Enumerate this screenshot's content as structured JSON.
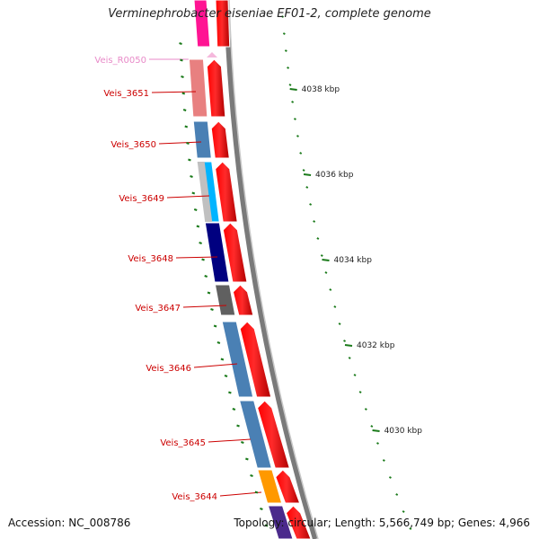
{
  "title": "Verminephrobacter eiseniae EF01-2, complete genome",
  "accession": "Accession: NC_008786",
  "summary": "Topology: circular; Length: 5,566,749 bp; Genes: 4,966",
  "colors": {
    "gene_label": "#cc0000",
    "rna_label": "#e88ac8",
    "tick": "#1a7a1a",
    "strand_arrow": "#ff0000",
    "backbone": "#808080"
  },
  "genes": [
    {
      "id": "Veis_R0050",
      "color": "#e88ac8",
      "feature_color": "#f5b8dc"
    },
    {
      "id": "Veis_3651",
      "color": "#cc0000",
      "feature_color": "#e88080"
    },
    {
      "id": "Veis_3650",
      "color": "#cc0000",
      "feature_color": "#4a80b4"
    },
    {
      "id": "Veis_3649",
      "color": "#cc0000",
      "feature_color": "#00b4ff"
    },
    {
      "id": "Veis_3648",
      "color": "#cc0000",
      "feature_color": "#000080"
    },
    {
      "id": "Veis_3647",
      "color": "#cc0000",
      "feature_color": "#606060"
    },
    {
      "id": "Veis_3646",
      "color": "#cc0000",
      "feature_color": "#4a80b4"
    },
    {
      "id": "Veis_3645",
      "color": "#cc0000",
      "feature_color": "#4a80b4"
    },
    {
      "id": "Veis_3644",
      "color": "#cc0000",
      "feature_color": "#ff9900"
    }
  ],
  "scale_ticks": [
    {
      "label": "4038 kbp"
    },
    {
      "label": "4036 kbp"
    },
    {
      "label": "4034 kbp"
    },
    {
      "label": "4032 kbp"
    },
    {
      "label": "4030 kbp"
    }
  ]
}
